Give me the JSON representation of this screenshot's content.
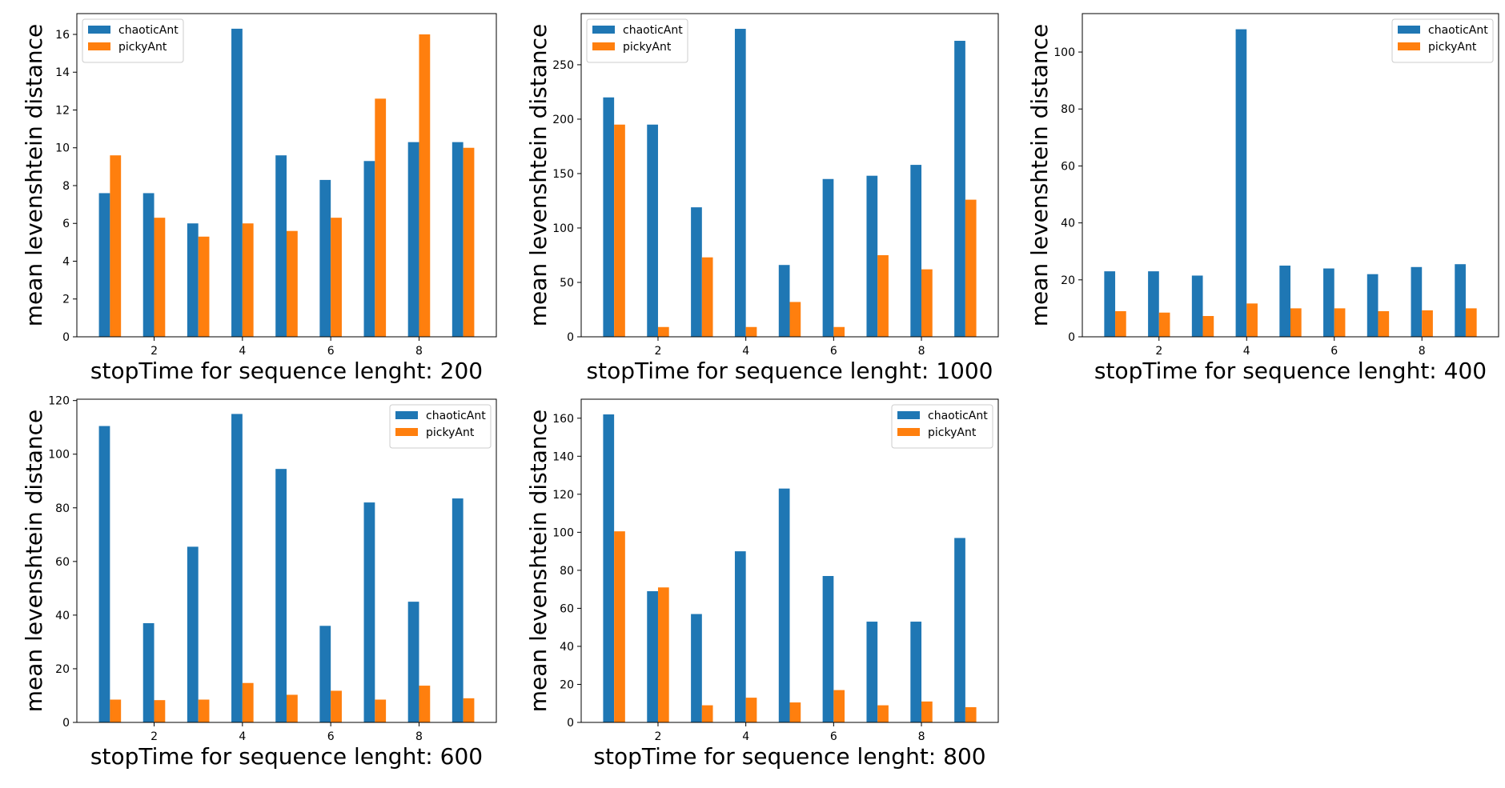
{
  "figure": {
    "colors": {
      "chaoticAnt": "#1f77b4",
      "pickyAnt": "#ff7f0e"
    }
  },
  "chart_data": [
    {
      "type": "bar",
      "x": [
        1,
        2,
        3,
        4,
        5,
        6,
        7,
        8,
        9
      ],
      "xticks": [
        2,
        4,
        6,
        8
      ],
      "xlabel": "stopTime for sequence lenght: 200",
      "ylabel": "mean levenshtein distance",
      "ylim": [
        0,
        17.1
      ],
      "yticks": [
        0,
        2,
        4,
        6,
        8,
        10,
        12,
        14,
        16
      ],
      "legend_position": "upper-left",
      "series": [
        {
          "name": "chaoticAnt",
          "values": [
            7.6,
            7.6,
            6.0,
            16.3,
            9.6,
            8.3,
            9.3,
            10.3,
            10.3
          ]
        },
        {
          "name": "pickyAnt",
          "values": [
            9.6,
            6.3,
            5.3,
            6.0,
            5.6,
            6.3,
            12.6,
            16.0,
            10.0
          ]
        }
      ]
    },
    {
      "type": "bar",
      "x": [
        1,
        2,
        3,
        4,
        5,
        6,
        7,
        8,
        9
      ],
      "xticks": [
        2,
        4,
        6,
        8
      ],
      "xlabel": "stopTime for sequence lenght: 1000",
      "ylabel": "mean levenshtein distance",
      "ylim": [
        0,
        297
      ],
      "yticks": [
        0,
        50,
        100,
        150,
        200,
        250
      ],
      "legend_position": "upper-left",
      "series": [
        {
          "name": "chaoticAnt",
          "values": [
            220,
            195,
            119,
            283,
            66,
            145,
            148,
            158,
            272
          ]
        },
        {
          "name": "pickyAnt",
          "values": [
            195,
            9,
            73,
            9,
            32,
            9,
            75,
            62,
            126
          ]
        }
      ]
    },
    {
      "type": "bar",
      "x": [
        1,
        2,
        3,
        4,
        5,
        6,
        7,
        8,
        9
      ],
      "xticks": [
        2,
        4,
        6,
        8
      ],
      "xlabel": "stopTime for sequence lenght: 400",
      "ylabel": "mean levenshtein distance",
      "ylim": [
        0,
        113.5
      ],
      "yticks": [
        0,
        20,
        40,
        60,
        80,
        100
      ],
      "legend_position": "upper-right",
      "series": [
        {
          "name": "chaoticAnt",
          "values": [
            23,
            23,
            21.5,
            108,
            25,
            24,
            22,
            24.5,
            25.5
          ]
        },
        {
          "name": "pickyAnt",
          "values": [
            9,
            8.5,
            7.3,
            11.7,
            10,
            10,
            9,
            9.3,
            10
          ]
        }
      ]
    },
    {
      "type": "bar",
      "x": [
        1,
        2,
        3,
        4,
        5,
        6,
        7,
        8,
        9
      ],
      "xticks": [
        2,
        4,
        6,
        8
      ],
      "xlabel": "stopTime for sequence lenght: 600",
      "ylabel": "mean levenshtein distance",
      "ylim": [
        0,
        120.5
      ],
      "yticks": [
        0,
        20,
        40,
        60,
        80,
        100,
        120
      ],
      "legend_position": "upper-right",
      "series": [
        {
          "name": "chaoticAnt",
          "values": [
            110.5,
            37,
            65.5,
            115,
            94.5,
            36,
            82,
            45,
            83.5
          ]
        },
        {
          "name": "pickyAnt",
          "values": [
            8.5,
            8.3,
            8.5,
            14.7,
            10.3,
            11.8,
            8.5,
            13.7,
            9
          ]
        }
      ]
    },
    {
      "type": "bar",
      "x": [
        1,
        2,
        3,
        4,
        5,
        6,
        7,
        8,
        9
      ],
      "xticks": [
        2,
        4,
        6,
        8
      ],
      "xlabel": "stopTime for sequence lenght: 800",
      "ylabel": "mean levenshtein distance",
      "ylim": [
        0,
        170
      ],
      "yticks": [
        0,
        20,
        40,
        60,
        80,
        100,
        120,
        140,
        160
      ],
      "legend_position": "upper-right",
      "series": [
        {
          "name": "chaoticAnt",
          "values": [
            162,
            69,
            57,
            90,
            123,
            77,
            53,
            53,
            97
          ]
        },
        {
          "name": "pickyAnt",
          "values": [
            100.5,
            71,
            9,
            13,
            10.5,
            17,
            9,
            11,
            8
          ]
        }
      ]
    }
  ]
}
